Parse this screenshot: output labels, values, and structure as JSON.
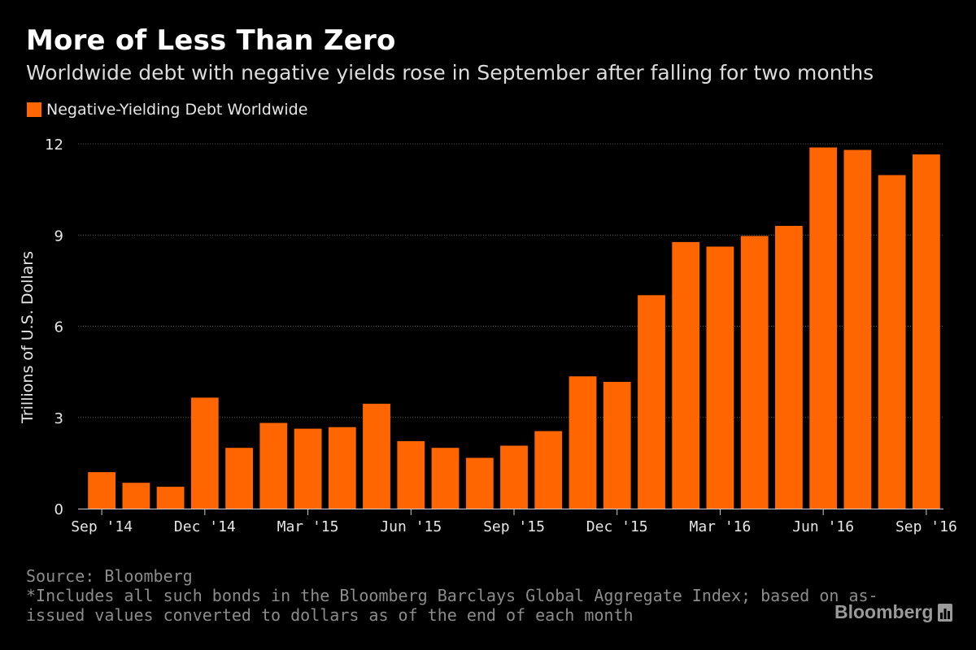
{
  "colors": {
    "background": "#000000",
    "bar": "#ff6600",
    "grid": "#5a5a5a",
    "text": "#ffffff",
    "muted": "#8c8c8c"
  },
  "brand": {
    "name": "Bloomberg",
    "icon": "bar-chart-icon"
  },
  "footer": {
    "source": "Source: Bloomberg",
    "note_line1": "*Includes all such bonds in the Bloomberg Barclays Global Aggregate Index; based on as-",
    "note_line2": "issued values converted to dollars as of the end of each month"
  },
  "chart_data": {
    "type": "bar",
    "title": "More of Less Than Zero",
    "subtitle": "Worldwide debt with negative yields rose in September after falling for two months",
    "legend": [
      "Negative-Yielding Debt Worldwide"
    ],
    "xlabel": "",
    "ylabel": "Trillions of U.S. Dollars",
    "ylim": [
      0,
      12
    ],
    "yticks": [
      0,
      3,
      6,
      9,
      12
    ],
    "grid": true,
    "categories": [
      "Sep '14",
      "Oct '14",
      "Nov '14",
      "Dec '14",
      "Jan '15",
      "Feb '15",
      "Mar '15",
      "Apr '15",
      "May '15",
      "Jun '15",
      "Jul '15",
      "Aug '15",
      "Sep '15",
      "Oct '15",
      "Nov '15",
      "Dec '15",
      "Jan '16",
      "Feb '16",
      "Mar '16",
      "Apr '16",
      "May '16",
      "Jun '16",
      "Jul '16",
      "Aug '16",
      "Sep '16"
    ],
    "xtick_labels": [
      {
        "index": 0,
        "label": "Sep '14"
      },
      {
        "index": 3,
        "label": "Dec '14"
      },
      {
        "index": 6,
        "label": "Mar '15"
      },
      {
        "index": 9,
        "label": "Jun '15"
      },
      {
        "index": 12,
        "label": "Sep '15"
      },
      {
        "index": 15,
        "label": "Dec '15"
      },
      {
        "index": 18,
        "label": "Mar '16"
      },
      {
        "index": 21,
        "label": "Jun '16"
      },
      {
        "index": 24,
        "label": "Sep '16"
      }
    ],
    "series": [
      {
        "name": "Negative-Yielding Debt Worldwide",
        "values": [
          1.2,
          0.85,
          0.72,
          3.65,
          2.0,
          2.82,
          2.63,
          2.68,
          3.45,
          2.22,
          2.0,
          1.67,
          2.07,
          2.55,
          4.35,
          4.17,
          7.02,
          8.77,
          8.62,
          8.97,
          9.3,
          11.88,
          11.8,
          10.97,
          11.65
        ]
      }
    ]
  }
}
